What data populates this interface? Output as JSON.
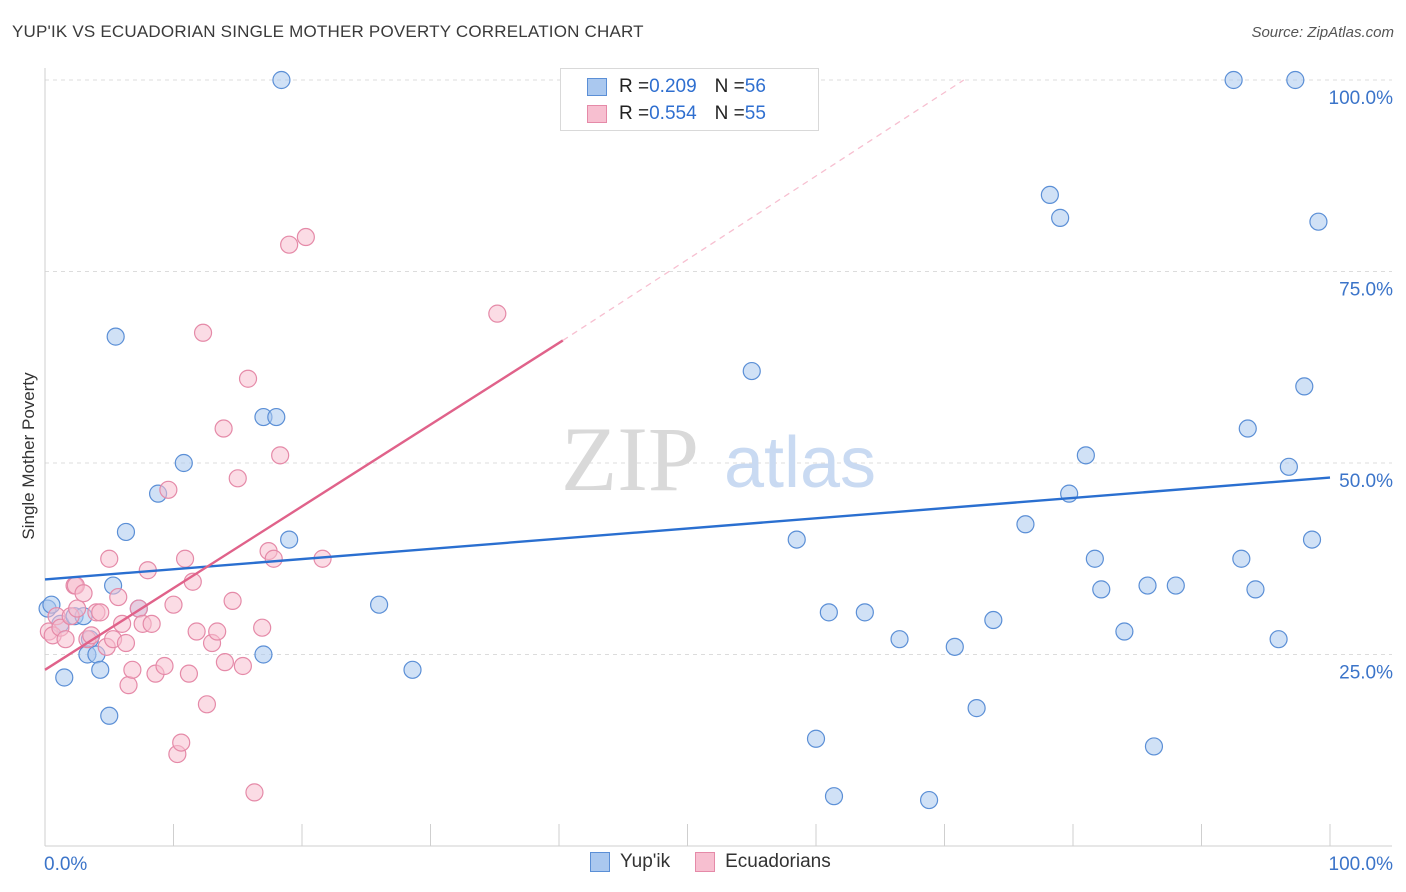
{
  "title": "YUP'IK VS ECUADORIAN SINGLE MOTHER POVERTY CORRELATION CHART",
  "source": "Source: ZipAtlas.com",
  "watermark": {
    "zip": "ZIP",
    "atlas": "atlas"
  },
  "legend_top": [
    {
      "r_label": "R = ",
      "r_value": "0.209",
      "n_label": "N = ",
      "n_value": "56"
    },
    {
      "r_label": "R = ",
      "r_value": "0.554",
      "n_label": "N = ",
      "n_value": "55"
    }
  ],
  "colors": {
    "yupik_fill": "#aac8ef",
    "yupik_stroke": "#5b8fd6",
    "yupik_line": "#2a6fd0",
    "ecuadorian_fill": "#f7bfd0",
    "ecuadorian_stroke": "#e58aa8",
    "ecuadorian_line": "#e0628a",
    "axis_text": "#3b74c9",
    "grid": "#dcdcdc"
  },
  "chart_data": {
    "type": "scatter",
    "title": "YUP'IK VS ECUADORIAN SINGLE MOTHER POVERTY CORRELATION CHART",
    "xlabel": "",
    "ylabel": "Single Mother Poverty",
    "xlim": [
      0,
      100
    ],
    "ylim": [
      0,
      100
    ],
    "x_tick_labels": [
      "0.0%",
      "100.0%"
    ],
    "y_tick_labels": [
      "25.0%",
      "50.0%",
      "75.0%",
      "100.0%"
    ],
    "y_ticks": [
      25,
      50,
      75,
      100
    ],
    "grid": true,
    "legend_position": "top-center",
    "series": [
      {
        "name": "Yup'ik",
        "points": [
          [
            0.2,
            31
          ],
          [
            1.2,
            29
          ],
          [
            1.5,
            22
          ],
          [
            2.3,
            30
          ],
          [
            3,
            30
          ],
          [
            3.5,
            27
          ],
          [
            3.3,
            25
          ],
          [
            4,
            25
          ],
          [
            4.3,
            23
          ],
          [
            5,
            17
          ],
          [
            5.3,
            34
          ],
          [
            5.5,
            66.5
          ],
          [
            6.3,
            41
          ],
          [
            7.3,
            31
          ],
          [
            8.8,
            46
          ],
          [
            10.8,
            50
          ],
          [
            17,
            25
          ],
          [
            18.4,
            100
          ],
          [
            17,
            56
          ],
          [
            18,
            56
          ],
          [
            19,
            40
          ],
          [
            26,
            31.5
          ],
          [
            28.6,
            23
          ],
          [
            55,
            62
          ],
          [
            58.5,
            40
          ],
          [
            60,
            14
          ],
          [
            61,
            30.5
          ],
          [
            61.4,
            6.5
          ],
          [
            63.8,
            30.5
          ],
          [
            66.5,
            27
          ],
          [
            68.8,
            6
          ],
          [
            70.8,
            26
          ],
          [
            72.5,
            18
          ],
          [
            73.8,
            29.5
          ],
          [
            76.3,
            42
          ],
          [
            78.2,
            85
          ],
          [
            79,
            82
          ],
          [
            79.7,
            46
          ],
          [
            81,
            51
          ],
          [
            81.7,
            37.5
          ],
          [
            82.2,
            33.5
          ],
          [
            84,
            28
          ],
          [
            85.8,
            34
          ],
          [
            86.3,
            13
          ],
          [
            88,
            34
          ],
          [
            92.5,
            100
          ],
          [
            93.1,
            37.5
          ],
          [
            93.6,
            54.5
          ],
          [
            94.2,
            33.5
          ],
          [
            96,
            27
          ],
          [
            96.8,
            49.5
          ],
          [
            97.3,
            100
          ],
          [
            98,
            60
          ],
          [
            98.6,
            40
          ],
          [
            99.1,
            81.5
          ],
          [
            0.5,
            31.5
          ]
        ],
        "trend": {
          "x": [
            0,
            100
          ],
          "y": [
            34.8,
            48.1
          ],
          "dashed_extension": false
        }
      },
      {
        "name": "Ecuadorians",
        "points": [
          [
            0.3,
            28
          ],
          [
            0.6,
            27.5
          ],
          [
            0.9,
            30
          ],
          [
            1.2,
            28.5
          ],
          [
            1.6,
            27
          ],
          [
            2,
            30
          ],
          [
            2.3,
            34
          ],
          [
            2.4,
            34
          ],
          [
            2.5,
            31
          ],
          [
            3,
            33
          ],
          [
            3.3,
            27
          ],
          [
            3.6,
            27.5
          ],
          [
            4,
            30.5
          ],
          [
            4.3,
            30.5
          ],
          [
            4.8,
            26
          ],
          [
            5,
            37.5
          ],
          [
            5.3,
            27
          ],
          [
            5.7,
            32.5
          ],
          [
            6,
            29
          ],
          [
            6.3,
            26.5
          ],
          [
            6.5,
            21
          ],
          [
            6.8,
            23
          ],
          [
            7.3,
            31
          ],
          [
            7.6,
            29
          ],
          [
            8,
            36
          ],
          [
            8.3,
            29
          ],
          [
            8.6,
            22.5
          ],
          [
            9.3,
            23.5
          ],
          [
            9.6,
            46.5
          ],
          [
            10,
            31.5
          ],
          [
            10.3,
            12
          ],
          [
            10.6,
            13.5
          ],
          [
            10.9,
            37.5
          ],
          [
            11.2,
            22.5
          ],
          [
            11.5,
            34.5
          ],
          [
            11.8,
            28
          ],
          [
            12.3,
            67
          ],
          [
            12.6,
            18.5
          ],
          [
            13,
            26.5
          ],
          [
            13.4,
            28
          ],
          [
            13.9,
            54.5
          ],
          [
            14,
            24
          ],
          [
            14.6,
            32
          ],
          [
            15,
            48
          ],
          [
            15.4,
            23.5
          ],
          [
            15.8,
            61
          ],
          [
            16.3,
            7
          ],
          [
            16.9,
            28.5
          ],
          [
            17.4,
            38.5
          ],
          [
            17.8,
            37.5
          ],
          [
            18.3,
            51
          ],
          [
            19,
            78.5
          ],
          [
            20.3,
            79.5
          ],
          [
            21.6,
            37.5
          ],
          [
            35.2,
            69.5
          ]
        ],
        "trend": {
          "x": [
            0,
            40.3
          ],
          "y": [
            23,
            66
          ],
          "dashed_extension": {
            "x": [
              40.3,
              71.5
            ],
            "y": [
              66,
              100
            ]
          }
        }
      }
    ]
  }
}
